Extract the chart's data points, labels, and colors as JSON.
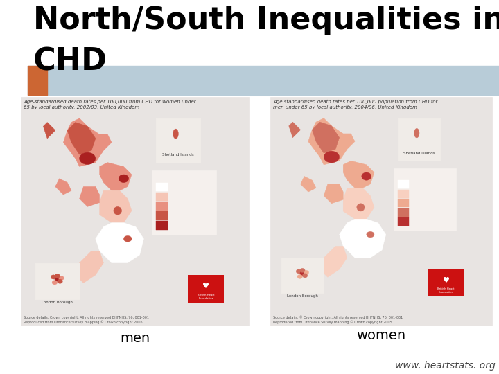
{
  "title_line1": "North/South Inequalities in",
  "title_line2": "CHD",
  "title_fontsize": 32,
  "title_color": "#000000",
  "background_color": "#ffffff",
  "header_bar_color": "#b8ccd8",
  "orange_bar_color": "#cc6633",
  "label_men": "men",
  "label_women": "women",
  "label_fontsize": 14,
  "website": "www. heartstats. org",
  "website_fontsize": 10,
  "map_bg": "#e8e4e0",
  "caption_left": "Age-standardised death rates per 100,000 from CHD for women under\n65 by local authority, 2002/03, United Kingdom",
  "caption_right": "Age standardised death rates per 100,000 population from CHD for\nmen under 65 by local authority, 2004/06, United Kingdom"
}
